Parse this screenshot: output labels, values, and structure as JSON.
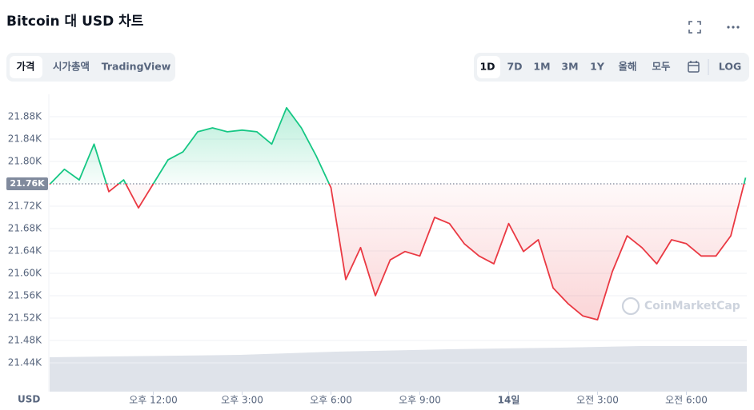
{
  "ui": {
    "title": "Bitcoin 대 USD 차트",
    "tabs": [
      "가격",
      "시가총액",
      "TradingView"
    ],
    "ranges": [
      "1D",
      "7D",
      "1M",
      "3M",
      "1Y",
      "올해",
      "모두"
    ],
    "log": "LOG",
    "currency": "USD",
    "watermark": "CoinMarketCap"
  },
  "chart_data": {
    "type": "line",
    "x": [
      8.5,
      9,
      9.5,
      10,
      10.5,
      11,
      11.5,
      12,
      12.5,
      13,
      13.5,
      14,
      14.5,
      15,
      15.5,
      16,
      16.5,
      17,
      17.5,
      18,
      18.5,
      19,
      19.5,
      20,
      20.5,
      21,
      21.5,
      22,
      22.5,
      23,
      23.5,
      24,
      24.5,
      25,
      25.5,
      26,
      26.5,
      27,
      27.5,
      28,
      28.5,
      29,
      29.5,
      30,
      30.5,
      31,
      31.5,
      32
    ],
    "series": [
      {
        "name": "Bitcoin",
        "values": [
          21759,
          21786,
          21767,
          21831,
          21746,
          21767,
          21717,
          21760,
          21803,
          21817,
          21853,
          21860,
          21853,
          21856,
          21853,
          21831,
          21896,
          21860,
          21810,
          21753,
          21589,
          21646,
          21560,
          21624,
          21639,
          21631,
          21700,
          21689,
          21653,
          21631,
          21617,
          21689,
          21639,
          21660,
          21574,
          21546,
          21524,
          21517,
          21603,
          21667,
          21646,
          21617,
          21660,
          21653,
          21631,
          21631,
          21667,
          21771
        ]
      }
    ],
    "up_color": "#16c784",
    "down_color": "#ea3943",
    "reference": {
      "value": 21760,
      "label": "21.76K"
    },
    "xlim": [
      8.5,
      32
    ],
    "xticks": [
      {
        "value": 12,
        "label": "오후 12:00"
      },
      {
        "value": 15,
        "label": "오후 3:00"
      },
      {
        "value": 18,
        "label": "오후 6:00"
      },
      {
        "value": 21,
        "label": "오후 9:00"
      },
      {
        "value": 24,
        "label": "14일"
      },
      {
        "value": 27,
        "label": "오전 3:00"
      },
      {
        "value": 30,
        "label": "오전 6:00"
      }
    ],
    "ylim": [
      21400,
      21920
    ],
    "yticks": [
      {
        "value": 21440,
        "label": "21.44K"
      },
      {
        "value": 21480,
        "label": "21.48K"
      },
      {
        "value": 21520,
        "label": "21.52K"
      },
      {
        "value": 21560,
        "label": "21.56K"
      },
      {
        "value": 21600,
        "label": "21.60K"
      },
      {
        "value": 21640,
        "label": "21.64K"
      },
      {
        "value": 21680,
        "label": "21.68K"
      },
      {
        "value": 21720,
        "label": "21.72K"
      },
      {
        "value": 21800,
        "label": "21.80K"
      },
      {
        "value": 21840,
        "label": "21.84K"
      },
      {
        "value": 21880,
        "label": "21.88K"
      }
    ],
    "grid": true
  }
}
